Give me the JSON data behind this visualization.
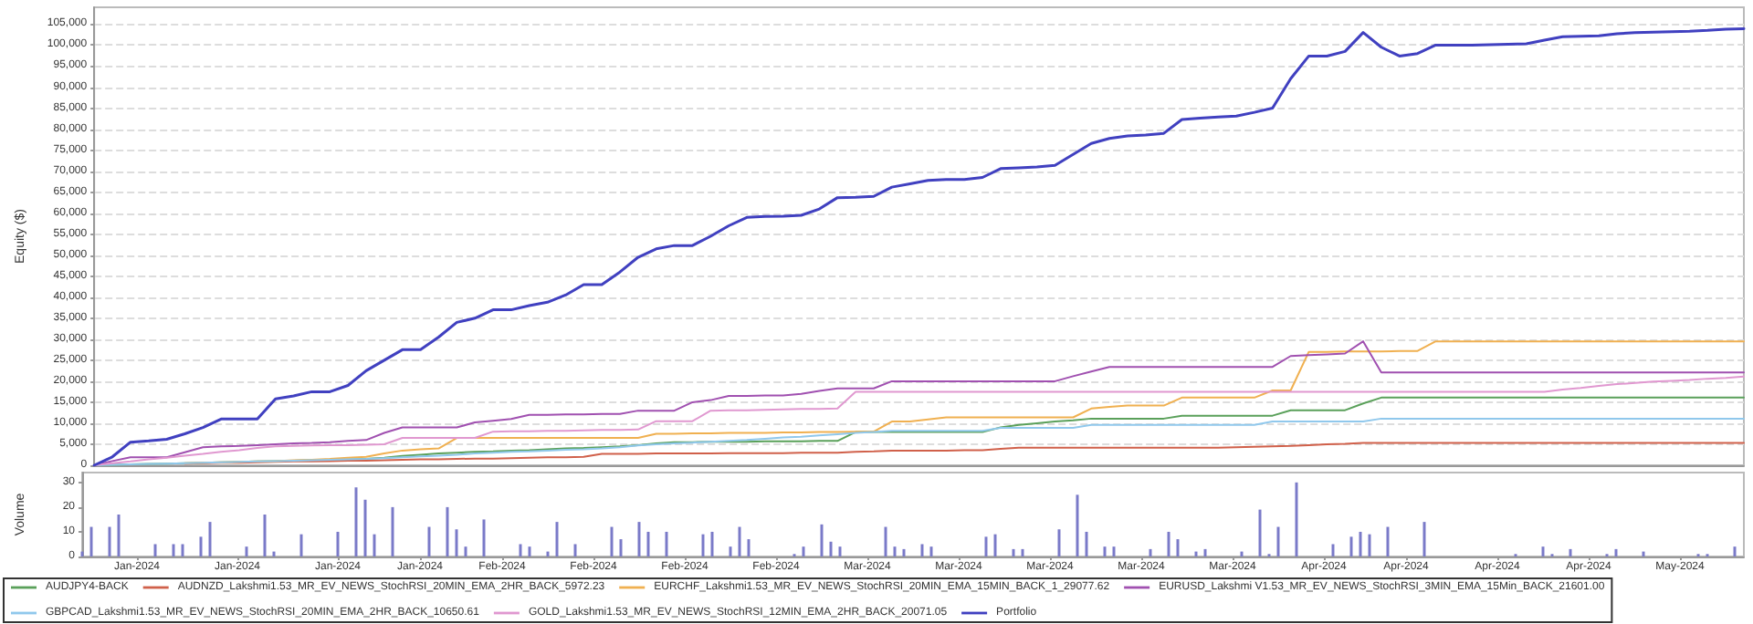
{
  "chart_data": [
    {
      "type": "line",
      "ylabel": "Equity ($)",
      "ylim": [
        0,
        109000
      ],
      "categories": [
        null,
        null,
        null,
        null,
        null,
        null,
        null,
        null,
        null,
        null,
        null,
        null,
        null,
        null,
        null,
        null,
        null,
        null,
        null,
        null,
        null,
        null,
        null,
        null,
        null,
        null,
        null,
        null,
        null,
        null,
        null,
        null,
        null,
        null,
        null,
        null,
        null,
        null,
        null,
        null,
        null,
        null,
        null,
        null,
        null,
        null,
        null,
        null,
        null,
        null,
        null,
        null,
        null,
        null,
        null,
        null,
        null,
        null,
        null,
        null,
        null,
        null,
        null,
        null,
        null,
        null,
        null,
        null,
        null,
        null,
        null,
        null,
        null,
        null,
        null,
        null,
        null,
        null,
        null,
        null,
        null,
        null,
        null,
        null,
        null,
        null,
        null,
        null,
        null,
        null,
        null,
        null
      ],
      "yticks": [
        {
          "value": 0,
          "label": "0"
        },
        {
          "value": 5000,
          "label": "5,000"
        },
        {
          "value": 10000,
          "label": "10,000"
        },
        {
          "value": 15000,
          "label": "15,000"
        },
        {
          "value": 20000,
          "label": "20,000"
        },
        {
          "value": 25000,
          "label": "25,000"
        },
        {
          "value": 30000,
          "label": "30,000"
        },
        {
          "value": 35000,
          "label": "35,000"
        },
        {
          "value": 40000,
          "label": "40,000"
        },
        {
          "value": 45000,
          "label": "45,000"
        },
        {
          "value": 50000,
          "label": "50,000"
        },
        {
          "value": 55000,
          "label": "55,000"
        },
        {
          "value": 60000,
          "label": "60,000"
        },
        {
          "value": 65000,
          "label": "65,000"
        },
        {
          "value": 70000,
          "label": "70,000"
        },
        {
          "value": 75000,
          "label": "75,000"
        },
        {
          "value": 80000,
          "label": "80,000"
        },
        {
          "value": 85000,
          "label": "85,000"
        },
        {
          "value": 90000,
          "label": "90,000"
        },
        {
          "value": 95000,
          "label": "95,000"
        },
        {
          "value": 100000,
          "label": "100,000"
        },
        {
          "value": 105000,
          "label": "105,000"
        }
      ],
      "tick_labels": "y",
      "grid": "y",
      "legend": "bottom",
      "marker": "none",
      "line_style": "solid",
      "series": [
        {
          "name": "AUDJPY4-BACK",
          "color": "#5aa05a",
          "values": [
            0,
            100,
            200,
            300,
            400,
            500,
            600,
            700,
            800,
            900,
            1000,
            1100,
            1200,
            1300,
            1400,
            1500,
            1800,
            2200,
            2500,
            2800,
            3000,
            3200,
            3300,
            3500,
            3600,
            3800,
            4000,
            4100,
            4300,
            4500,
            4800,
            5200,
            5500,
            5500,
            5600,
            5600,
            5600,
            5700,
            5700,
            5700,
            5800,
            5800,
            7900,
            7900,
            7900,
            7900,
            7900,
            7900,
            7900,
            7900,
            9000,
            9600,
            10000,
            10400,
            10700,
            11100,
            11100,
            11100,
            11100,
            11100,
            11800,
            11800,
            11800,
            11800,
            11800,
            11800,
            13100,
            13100,
            13100,
            13100,
            14700,
            16100,
            16100,
            16100,
            16100,
            16100,
            16100,
            16100,
            16100,
            16100,
            16100,
            16100,
            16100,
            16100,
            16100,
            16100,
            16100,
            16100,
            16100,
            16100,
            16100,
            16100
          ]
        },
        {
          "name": "AUDNZD_Lakshmi1.53_MR_EV_NEWS_StochRSI_20MIN_EMA_2HR_BACK_5972.23",
          "color": "#d0604a",
          "values": [
            null,
            null,
            null,
            null,
            null,
            400,
            500,
            600,
            600,
            700,
            800,
            900,
            900,
            1000,
            1100,
            1100,
            1200,
            1300,
            1400,
            1400,
            1500,
            1600,
            1600,
            1700,
            1800,
            1900,
            1900,
            2000,
            2700,
            2700,
            2700,
            2800,
            2800,
            2800,
            2800,
            2900,
            2900,
            2900,
            2900,
            3000,
            3000,
            3000,
            3200,
            3300,
            3500,
            3500,
            3500,
            3500,
            3600,
            3600,
            3900,
            4200,
            4200,
            4200,
            4200,
            4200,
            4200,
            4200,
            4200,
            4200,
            4200,
            4200,
            4200,
            4300,
            4400,
            4500,
            4600,
            4800,
            5000,
            5100,
            5300,
            5300,
            5300,
            5300,
            5300,
            5300,
            5300,
            5300,
            5300,
            5300,
            5300,
            5300,
            5300,
            5300,
            5300,
            5300,
            5300,
            5300,
            5300,
            5300,
            5300,
            5300
          ]
        },
        {
          "name": "EURCHF_Lakshmi1.53_MR_EV_NEWS_StochRSI_20MIN_EMA_15MIN_BACK_1_29077.62",
          "color": "#f0b050",
          "values": [
            null,
            null,
            null,
            null,
            null,
            500,
            600,
            700,
            800,
            900,
            1000,
            1200,
            1300,
            1500,
            1800,
            2000,
            2800,
            3500,
            3800,
            4000,
            6500,
            6500,
            6500,
            6500,
            6500,
            6500,
            6500,
            6500,
            6500,
            6500,
            6500,
            7500,
            7500,
            7600,
            7600,
            7700,
            7700,
            7700,
            7800,
            7800,
            7900,
            7900,
            8000,
            8000,
            10400,
            10400,
            10900,
            11400,
            11400,
            11400,
            11400,
            11400,
            11400,
            11400,
            11400,
            13500,
            13900,
            14200,
            14200,
            14200,
            16100,
            16100,
            16100,
            16100,
            16100,
            17800,
            17800,
            27000,
            27000,
            27100,
            27100,
            27100,
            27200,
            27200,
            29500,
            29500,
            29500,
            29500,
            29500,
            29500,
            29500,
            29500,
            29500,
            29500,
            29500,
            29500,
            29500,
            29500,
            29500,
            29500,
            29500,
            29500
          ]
        },
        {
          "name": "EURUSD_Lakshmi V1.53_MR_EV_NEWS_StochRSI_3MIN_EMA_15Min_BACK_21601.00",
          "color": "#a050b0",
          "values": [
            0,
            1000,
            1900,
            1900,
            1900,
            3100,
            4300,
            4500,
            4600,
            4800,
            5000,
            5200,
            5300,
            5500,
            5800,
            6000,
            7700,
            9000,
            9000,
            9000,
            9000,
            10200,
            10600,
            11000,
            12000,
            12000,
            12100,
            12100,
            12200,
            12200,
            13000,
            13000,
            13000,
            15000,
            15500,
            16500,
            16500,
            16600,
            16600,
            17000,
            17700,
            18300,
            18300,
            18300,
            20000,
            20000,
            20000,
            20000,
            20000,
            20000,
            20000,
            20000,
            20000,
            20000,
            21200,
            22300,
            23400,
            23400,
            23400,
            23400,
            23400,
            23400,
            23400,
            23400,
            23400,
            23400,
            26000,
            26200,
            26400,
            26600,
            29500,
            22100,
            22100,
            22100,
            22100,
            22100,
            22100,
            22100,
            22100,
            22100,
            22100,
            22100,
            22100,
            22100,
            22100,
            22100,
            22100,
            22100,
            22100,
            22100,
            22100,
            22100
          ]
        },
        {
          "name": "GBPCAD_Lakshmi1.53_MR_EV_NEWS_StochRSI_20MIN_EMA_2HR_BACK_10650.61",
          "color": "#90c8ec",
          "values": [
            0,
            100,
            200,
            300,
            400,
            500,
            600,
            700,
            800,
            900,
            1000,
            1100,
            1200,
            1300,
            1400,
            1500,
            1700,
            1900,
            2100,
            2300,
            2500,
            2800,
            3000,
            3200,
            3300,
            3500,
            3700,
            3800,
            4000,
            4300,
            4700,
            5000,
            5200,
            5400,
            5600,
            5800,
            6000,
            6300,
            6600,
            6800,
            7100,
            7400,
            7700,
            7900,
            8200,
            8200,
            8200,
            8200,
            8200,
            8200,
            8900,
            8900,
            8900,
            8900,
            8900,
            9600,
            9600,
            9600,
            9600,
            9600,
            9600,
            9600,
            9600,
            9600,
            9600,
            10400,
            10400,
            10400,
            10400,
            10400,
            10400,
            11100,
            11100,
            11100,
            11100,
            11100,
            11100,
            11100,
            11100,
            11100,
            11100,
            11100,
            11100,
            11100,
            11100,
            11100,
            11100,
            11100,
            11100,
            11100,
            11100,
            11100
          ]
        },
        {
          "name": "GOLD_Lakshmi1.53_MR_EV_NEWS_StochRSI_12MIN_EMA_2HR_BACK_20071.05",
          "color": "#e098d0",
          "values": [
            0,
            500,
            900,
            1400,
            1800,
            2300,
            2700,
            3200,
            3600,
            4100,
            4500,
            4600,
            4700,
            4800,
            4800,
            4900,
            5000,
            6500,
            6500,
            6500,
            6500,
            6500,
            8000,
            8100,
            8100,
            8200,
            8200,
            8300,
            8400,
            8400,
            8500,
            10500,
            10500,
            10500,
            13000,
            13100,
            13100,
            13200,
            13300,
            13400,
            13400,
            13500,
            17500,
            17500,
            17500,
            17500,
            17500,
            17500,
            17500,
            17500,
            17500,
            17500,
            17500,
            17500,
            17500,
            17500,
            17500,
            17500,
            17500,
            17500,
            17500,
            17500,
            17500,
            17500,
            17500,
            17500,
            17500,
            17500,
            17500,
            17500,
            17500,
            17500,
            17500,
            17500,
            17500,
            17500,
            17500,
            17500,
            17500,
            17500,
            17500,
            18000,
            18400,
            18900,
            19300,
            19600,
            19900,
            20100,
            20300,
            20600,
            20800,
            21100
          ]
        },
        {
          "name": "Portfolio",
          "color": "#4040c0",
          "values": [
            0,
            2000,
            5500,
            5800,
            6200,
            7500,
            9000,
            11000,
            11000,
            11000,
            15800,
            16500,
            17500,
            17500,
            19000,
            22500,
            25000,
            27500,
            27500,
            30500,
            34000,
            35000,
            37000,
            37000,
            38000,
            38800,
            40500,
            43000,
            43000,
            46000,
            49500,
            51500,
            52300,
            52300,
            54500,
            57000,
            59000,
            59200,
            59300,
            59500,
            61000,
            63700,
            63800,
            64000,
            66200,
            67000,
            67800,
            68000,
            68000,
            68500,
            70600,
            70800,
            71000,
            71400,
            74000,
            76600,
            77800,
            78400,
            78600,
            79000,
            82300,
            82600,
            82900,
            83100,
            84000,
            85000,
            92000,
            97400,
            97400,
            98500,
            103000,
            99500,
            97400,
            98000,
            100000,
            100000,
            100000,
            100100,
            100200,
            100300,
            101200,
            102000,
            102100,
            102200,
            102700,
            103000,
            103100,
            103200,
            103300,
            103500,
            103800,
            103900
          ]
        }
      ]
    },
    {
      "type": "bar",
      "ylabel": "Volume",
      "ylim": [
        0,
        34
      ],
      "yticks": [
        0,
        10,
        20,
        30
      ],
      "categories": [
        null,
        null,
        null,
        null,
        null,
        null,
        "Jan-2024",
        null,
        null,
        null,
        null,
        null,
        null,
        null,
        null,
        null,
        null,
        "Jan-2024",
        null,
        null,
        null,
        null,
        null,
        null,
        null,
        null,
        null,
        null,
        "Jan-2024",
        null,
        null,
        null,
        null,
        null,
        null,
        null,
        null,
        "Jan-2024",
        null,
        null,
        null,
        null,
        null,
        null,
        null,
        null,
        "Feb-2024",
        null,
        null,
        null,
        null,
        null,
        null,
        null,
        null,
        null,
        "Feb-2024",
        null,
        null,
        null,
        null,
        null,
        null,
        null,
        null,
        null,
        "Feb-2024",
        null,
        null,
        null,
        null,
        null,
        null,
        null,
        null,
        null,
        "Feb-2024",
        null,
        null,
        null,
        null,
        null,
        null,
        null,
        null,
        null,
        "Mar-2024",
        null,
        null,
        null,
        null,
        null,
        null,
        null,
        null,
        null,
        "Mar-2024",
        null,
        null,
        null,
        null,
        null,
        null,
        null,
        null,
        null,
        "Mar-2024",
        null,
        null,
        null,
        null,
        null,
        null,
        null,
        null,
        null,
        "Mar-2024",
        null,
        null,
        null,
        null,
        null,
        null,
        null,
        null,
        null,
        "Mar-2024",
        null,
        null,
        null,
        null,
        null,
        null,
        null,
        null,
        null,
        "Apr-2024",
        null,
        null,
        null,
        null,
        null,
        null,
        null,
        null,
        "Apr-2024",
        null,
        null,
        null,
        null,
        null,
        null,
        null,
        null,
        null,
        "Apr-2024",
        null,
        null,
        null,
        null,
        null,
        null,
        null,
        null,
        null,
        "Apr-2024",
        null,
        null,
        null,
        null,
        null,
        null,
        null,
        null,
        null,
        "May-2024",
        null,
        null,
        null,
        null,
        null,
        null,
        null
      ],
      "series": [
        {
          "color": "#7a7ac8",
          "values": [
            2,
            12,
            null,
            12,
            17,
            null,
            null,
            null,
            5,
            null,
            5,
            5,
            null,
            8,
            14,
            null,
            null,
            null,
            4,
            null,
            17,
            2,
            null,
            null,
            9,
            null,
            null,
            null,
            10,
            null,
            28,
            23,
            9,
            null,
            20,
            null,
            null,
            null,
            12,
            null,
            20,
            11,
            4,
            null,
            15,
            null,
            null,
            null,
            5,
            4,
            null,
            2,
            14,
            null,
            5,
            null,
            null,
            null,
            12,
            7,
            null,
            14,
            10,
            null,
            10,
            null,
            null,
            null,
            9,
            10,
            null,
            4,
            12,
            7,
            null,
            null,
            null,
            null,
            1,
            4,
            null,
            13,
            6,
            4,
            null,
            null,
            null,
            null,
            12,
            4,
            3,
            null,
            5,
            4,
            null,
            null,
            null,
            null,
            null,
            8,
            9,
            null,
            3,
            3,
            null,
            null,
            null,
            11,
            null,
            25,
            10,
            null,
            4,
            4,
            null,
            null,
            null,
            3,
            null,
            10,
            7,
            null,
            2,
            3,
            null,
            null,
            null,
            2,
            null,
            19,
            1,
            12,
            null,
            30,
            null,
            null,
            null,
            5,
            null,
            8,
            10,
            9,
            null,
            12,
            null,
            null,
            null,
            14,
            null,
            null,
            null,
            null,
            null,
            null,
            null,
            null,
            null,
            1,
            null,
            null,
            4,
            1,
            null,
            3,
            null,
            null,
            null,
            1,
            3,
            null,
            null,
            2,
            null,
            null,
            null,
            null,
            null,
            1,
            1,
            null,
            null,
            4,
            null
          ]
        }
      ]
    }
  ]
}
